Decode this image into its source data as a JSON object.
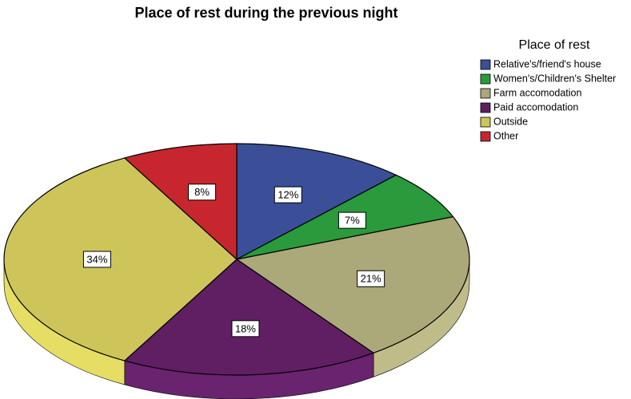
{
  "chart_data": {
    "type": "pie",
    "title": "Place of rest during the previous night",
    "legend_title": "Place of rest",
    "categories": [
      "Relative's/friend's house",
      "Women's/Children's Shelter",
      "Farm accomodation",
      "Paid accomodation",
      "Outside",
      "Other"
    ],
    "values": [
      12,
      7,
      21,
      18,
      34,
      8
    ],
    "value_labels": [
      "12%",
      "7%",
      "21%",
      "18%",
      "34%",
      "8%"
    ],
    "colors": [
      "#3a4f98",
      "#2a9a3c",
      "#aba87a",
      "#5f1f62",
      "#cdc55a",
      "#c8262e"
    ],
    "legend": "right"
  }
}
